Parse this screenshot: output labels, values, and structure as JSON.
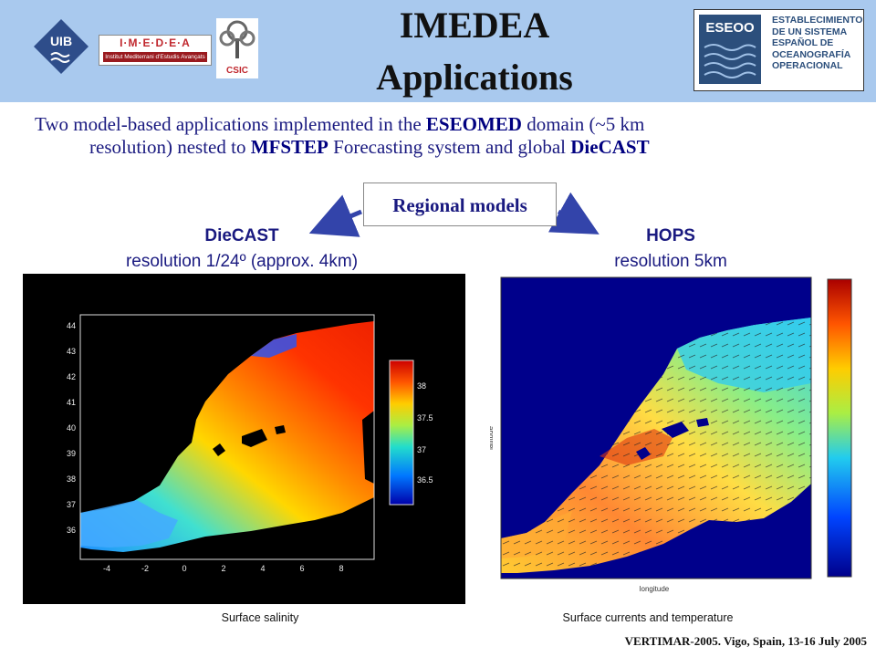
{
  "header": {
    "title_line1": "IMEDEA",
    "title_line2": "Applications",
    "logos": {
      "uib": "UIB",
      "imedea_top": "I·M·E·D·E·A",
      "imedea_bottom": "Institut Mediterrani d'Estudis Avançats",
      "csic": "CSIC",
      "eseoo_word": "ESEOO",
      "eseoo_lines": [
        "ESTABLECIMIENTO",
        "DE UN SISTEMA",
        "ESPAÑOL DE",
        "OCEANOGRAFÍA",
        "OPERACIONAL"
      ]
    },
    "background_color": "#a9c9ee"
  },
  "intro": {
    "p1": "Two model-based applications implemented in the ",
    "b1": "ESEOMED",
    "p2": " domain (~5 km",
    "p3": "resolution) nested to ",
    "b2": "MFSTEP",
    "p4": " Forecasting system and global ",
    "b3": "DieCAST"
  },
  "regional_models": "Regional models",
  "models": [
    {
      "name": "DieCAST",
      "resolution": "resolution 1/24º (approx. 4km)"
    },
    {
      "name": "HOPS",
      "resolution": "resolution 5km"
    }
  ],
  "left_figure": {
    "y_ticks": [
      "44",
      "43",
      "42",
      "41",
      "40",
      "39",
      "38",
      "37",
      "36"
    ],
    "x_ticks": [
      "-4",
      "-2",
      "0",
      "2",
      "4",
      "6",
      "8"
    ],
    "colorbar_ticks": [
      "38",
      "37.5",
      "37",
      "36.5"
    ],
    "caption": "Surface salinity"
  },
  "right_figure": {
    "ylabel": "latitude",
    "xlabel": "longitude",
    "caption": "Surface currents and temperature"
  },
  "footer": "VERTIMAR-2005. Vigo, Spain, 13-16 July 2005",
  "colors": {
    "text_blue": "#1a1a80",
    "arrow_blue": "#3344aa"
  }
}
